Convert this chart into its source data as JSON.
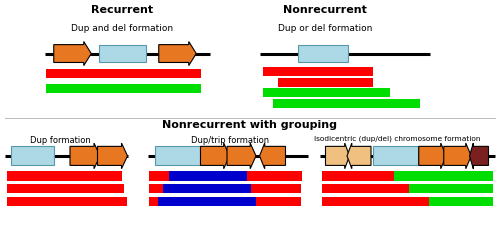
{
  "title_recurrent": "Recurrent",
  "title_nonrecurrent": "Nonrecurrent",
  "title_grouping": "Nonrecurrent with grouping",
  "subtitle_dup_del": "Dup and del formation",
  "subtitle_dup_or_del": "Dup or del formation",
  "subtitle_dup_form": "Dup formation",
  "subtitle_duptrip": "Dup/trip formation",
  "subtitle_isodicentric": "Isodicentric (dup/del) chromosome formation",
  "orange_color": "#E87722",
  "tan_color": "#F0C080",
  "brown_color": "#7B2020",
  "light_blue": "#ADD8E6",
  "light_blue_edge": "#5599AA",
  "red_color": "#FF0000",
  "green_color": "#00DD00",
  "blue_color": "#0000CC",
  "black": "#000000",
  "bg_color": "#FFFFFF"
}
